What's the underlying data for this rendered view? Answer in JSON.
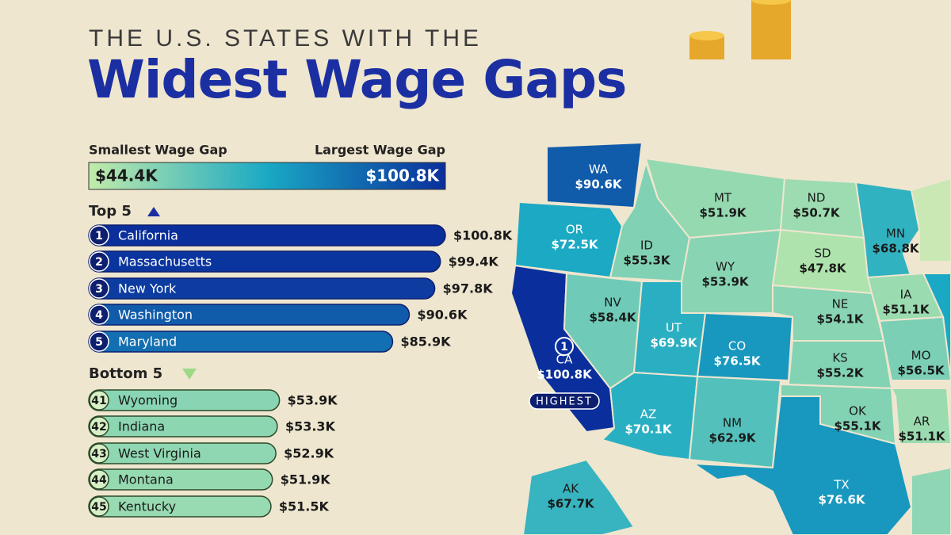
{
  "header": {
    "kicker": "THE U.S. STATES WITH THE",
    "title": "Widest Wage Gaps"
  },
  "legend": {
    "min_label": "Smallest Wage Gap",
    "max_label": "Largest Wage Gap",
    "min": 44.4,
    "max": 100.8,
    "min_value_label": "$44.4K",
    "max_value_label": "$100.8K",
    "colors": [
      "#c2ebaa",
      "#1aa9c4",
      "#0a2f9c"
    ]
  },
  "top": {
    "title": "Top 5",
    "rows": [
      {
        "rank": 1,
        "state": "California",
        "value": 100.8,
        "value_label": "$100.8K"
      },
      {
        "rank": 2,
        "state": "Massachusetts",
        "value": 99.4,
        "value_label": "$99.4K"
      },
      {
        "rank": 3,
        "state": "New York",
        "value": 97.8,
        "value_label": "$97.8K"
      },
      {
        "rank": 4,
        "state": "Washington",
        "value": 90.6,
        "value_label": "$90.6K"
      },
      {
        "rank": 5,
        "state": "Maryland",
        "value": 85.9,
        "value_label": "$85.9K"
      }
    ]
  },
  "bottom": {
    "title": "Bottom 5",
    "rows": [
      {
        "rank": 41,
        "state": "Wyoming",
        "value": 53.9,
        "value_label": "$53.9K"
      },
      {
        "rank": 42,
        "state": "Indiana",
        "value": 53.3,
        "value_label": "$53.3K"
      },
      {
        "rank": 43,
        "state": "West Virginia",
        "value": 52.9,
        "value_label": "$52.9K"
      },
      {
        "rank": 44,
        "state": "Montana",
        "value": 51.9,
        "value_label": "$51.9K"
      },
      {
        "rank": 45,
        "state": "Kentucky",
        "value": 51.5,
        "value_label": "$51.5K"
      }
    ]
  },
  "map": {
    "highlight": {
      "rank": 1,
      "tag": "HIGHEST"
    },
    "states": [
      {
        "abbr": "WA",
        "value": 90.6,
        "value_label": "$90.6K"
      },
      {
        "abbr": "OR",
        "value": 72.5,
        "value_label": "$72.5K"
      },
      {
        "abbr": "CA",
        "value": 100.8,
        "value_label": "$100.8K"
      },
      {
        "abbr": "NV",
        "value": 58.4,
        "value_label": "$58.4K"
      },
      {
        "abbr": "ID",
        "value": 55.3,
        "value_label": "$55.3K"
      },
      {
        "abbr": "MT",
        "value": 51.9,
        "value_label": "$51.9K"
      },
      {
        "abbr": "WY",
        "value": 53.9,
        "value_label": "$53.9K"
      },
      {
        "abbr": "UT",
        "value": 69.9,
        "value_label": "$69.9K"
      },
      {
        "abbr": "CO",
        "value": 76.5,
        "value_label": "$76.5K"
      },
      {
        "abbr": "AZ",
        "value": 70.1,
        "value_label": "$70.1K"
      },
      {
        "abbr": "NM",
        "value": 62.9,
        "value_label": "$62.9K"
      },
      {
        "abbr": "ND",
        "value": 50.7,
        "value_label": "$50.7K"
      },
      {
        "abbr": "SD",
        "value": 47.8,
        "value_label": "$47.8K"
      },
      {
        "abbr": "NE",
        "value": 54.1,
        "value_label": "$54.1K"
      },
      {
        "abbr": "KS",
        "value": 55.2,
        "value_label": "$55.2K"
      },
      {
        "abbr": "OK",
        "value": 55.1,
        "value_label": "$55.1K"
      },
      {
        "abbr": "TX",
        "value": 76.6,
        "value_label": "$76.6K"
      },
      {
        "abbr": "MN",
        "value": 68.8,
        "value_label": "$68.8K"
      },
      {
        "abbr": "IA",
        "value": 51.1,
        "value_label": "$51.1K"
      },
      {
        "abbr": "MO",
        "value": 56.5,
        "value_label": "$56.5K"
      },
      {
        "abbr": "AR",
        "value": 51.1,
        "value_label": "$51.1K"
      },
      {
        "abbr": "AK",
        "value": 67.7,
        "value_label": "$67.7K"
      }
    ]
  }
}
